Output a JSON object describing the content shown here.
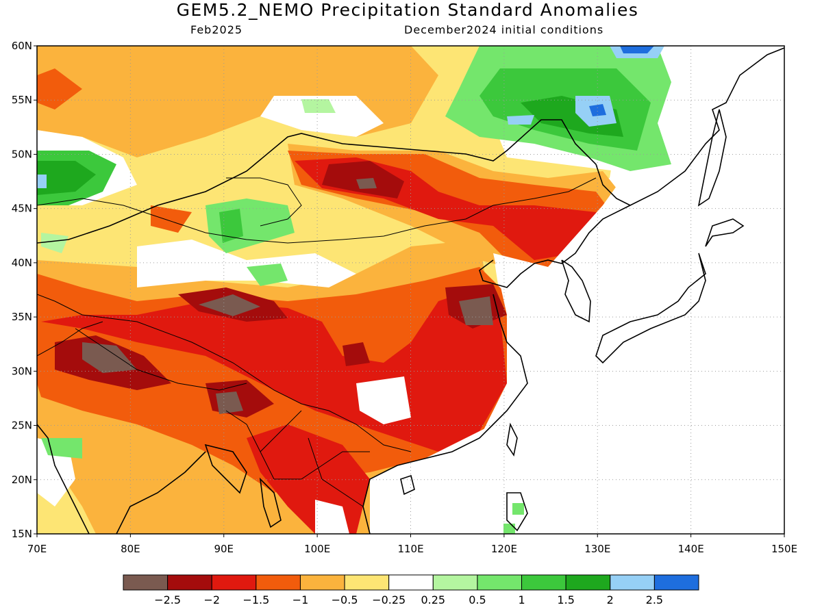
{
  "title": "GEM5.2_NEMO Precipitation Standard Anomalies",
  "subtitle_left": "Feb2025",
  "subtitle_right": "December2024 initial conditions",
  "lat_labels": [
    "15N",
    "20N",
    "25N",
    "30N",
    "35N",
    "40N",
    "45N",
    "50N",
    "55N",
    "60N"
  ],
  "lon_labels": [
    "70E",
    "80E",
    "90E",
    "100E",
    "110E",
    "120E",
    "130E",
    "140E",
    "150E"
  ],
  "lon_range": [
    70,
    150
  ],
  "lat_range": [
    15,
    60
  ],
  "colorbar": {
    "colors": [
      "#7a5a50",
      "#a40c0c",
      "#e0190f",
      "#f25c0c",
      "#fbb33d",
      "#fde574",
      "#ffffff",
      "#b4f5a0",
      "#74e66c",
      "#3cc83c",
      "#1ea81e",
      "#96d0f6",
      "#1e6ede"
    ],
    "labels": [
      "−2.5",
      "−2",
      "−1.5",
      "−1",
      "−0.5",
      "−0.25",
      "0.25",
      "0.5",
      "1",
      "1.5",
      "2",
      "2.5"
    ]
  }
}
